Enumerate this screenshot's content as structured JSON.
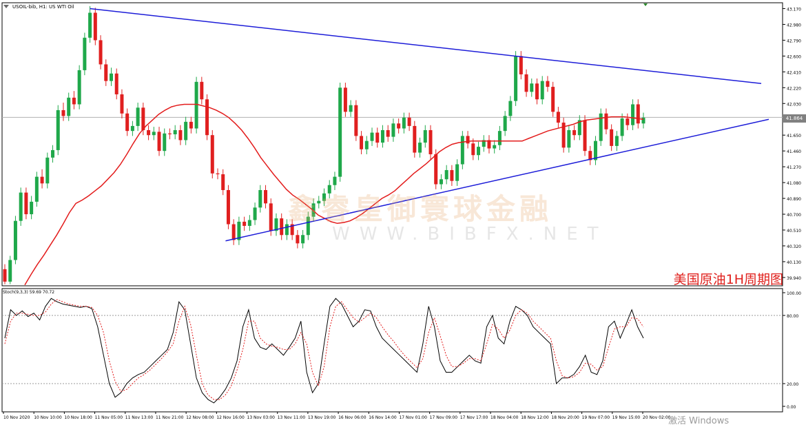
{
  "chart_data": [
    {
      "type": "candlestick",
      "title": "USOIL-bib, H1: US WTI Oil",
      "current_price": "41.864",
      "ylim": [
        39.84,
        43.24
      ],
      "y_ticks": [
        "43.170",
        "42.980",
        "42.790",
        "42.600",
        "42.410",
        "42.220",
        "42.030",
        "41.840",
        "41.650",
        "41.460",
        "41.270",
        "41.080",
        "40.890",
        "40.700",
        "40.510",
        "40.320",
        "40.130",
        "39.940"
      ],
      "x_ticks": [
        "10 Nov 2020",
        "10 Nov 10:00",
        "10 Nov 18:00",
        "11 Nov 05:00",
        "11 Nov 13:00",
        "11 Nov 21:00",
        "12 Nov 08:00",
        "12 Nov 16:00",
        "13 Nov 03:00",
        "13 Nov 11:00",
        "13 Nov 19:00",
        "16 Nov 06:00",
        "16 Nov 14:00",
        "17 Nov 01:00",
        "17 Nov 09:00",
        "17 Nov 17:00",
        "18 Nov 04:00",
        "18 Nov 12:00",
        "18 Nov 20:00",
        "19 Nov 07:00",
        "19 Nov 15:00",
        "20 Nov 02:00"
      ],
      "candles": [
        [
          40.04,
          39.89,
          40.1,
          39.86
        ],
        [
          39.89,
          40.15,
          40.2,
          39.86
        ],
        [
          40.15,
          40.62,
          40.68,
          40.1
        ],
        [
          40.62,
          40.96,
          41.02,
          40.56
        ],
        [
          40.96,
          40.7,
          41.02,
          40.64
        ],
        [
          40.7,
          40.85,
          40.92,
          40.64
        ],
        [
          40.85,
          41.15,
          41.21,
          40.79
        ],
        [
          41.15,
          41.07,
          41.24,
          41.01
        ],
        [
          41.07,
          41.38,
          41.44,
          41.01
        ],
        [
          41.38,
          41.47,
          41.53,
          41.32
        ],
        [
          41.47,
          41.95,
          42.01,
          41.41
        ],
        [
          41.95,
          41.88,
          42.04,
          41.82
        ],
        [
          41.88,
          42.1,
          42.16,
          41.82
        ],
        [
          42.1,
          42.02,
          42.18,
          41.96
        ],
        [
          42.02,
          42.43,
          42.49,
          41.96
        ],
        [
          42.43,
          42.82,
          42.88,
          42.37
        ],
        [
          42.82,
          43.12,
          43.2,
          42.76
        ],
        [
          43.12,
          42.79,
          43.18,
          42.73
        ],
        [
          42.79,
          42.5,
          42.85,
          42.44
        ],
        [
          42.5,
          42.3,
          42.56,
          42.24
        ],
        [
          42.3,
          42.39,
          42.46,
          42.24
        ],
        [
          42.39,
          42.14,
          42.45,
          42.08
        ],
        [
          42.14,
          41.91,
          42.2,
          41.85
        ],
        [
          41.91,
          41.7,
          41.97,
          41.64
        ],
        [
          41.7,
          41.76,
          41.82,
          41.64
        ],
        [
          41.76,
          41.98,
          42.04,
          41.7
        ],
        [
          41.98,
          41.71,
          42.04,
          41.65
        ],
        [
          41.71,
          41.65,
          41.77,
          41.59
        ],
        [
          41.65,
          41.69,
          41.75,
          41.59
        ],
        [
          41.69,
          41.46,
          41.75,
          41.4
        ],
        [
          41.46,
          41.67,
          41.73,
          41.4
        ],
        [
          41.67,
          41.66,
          41.73,
          41.6
        ],
        [
          41.66,
          41.71,
          41.77,
          41.6
        ],
        [
          41.71,
          41.59,
          41.77,
          41.53
        ],
        [
          41.59,
          41.81,
          41.87,
          41.53
        ],
        [
          41.81,
          41.73,
          41.87,
          41.67
        ],
        [
          41.73,
          42.29,
          42.35,
          41.67
        ],
        [
          42.29,
          42.08,
          42.35,
          42.02
        ],
        [
          42.08,
          41.65,
          42.14,
          41.59
        ],
        [
          41.65,
          41.19,
          41.71,
          41.13
        ],
        [
          41.19,
          41.18,
          41.25,
          41.12
        ],
        [
          41.18,
          40.99,
          41.24,
          40.93
        ],
        [
          40.99,
          40.58,
          41.05,
          40.52
        ],
        [
          40.58,
          40.39,
          40.64,
          40.33
        ],
        [
          40.39,
          40.61,
          40.67,
          40.33
        ],
        [
          40.61,
          40.56,
          40.67,
          40.5
        ],
        [
          40.56,
          40.63,
          40.69,
          40.5
        ],
        [
          40.63,
          40.78,
          40.84,
          40.57
        ],
        [
          40.78,
          40.99,
          41.05,
          40.72
        ],
        [
          40.99,
          40.83,
          41.05,
          40.77
        ],
        [
          40.83,
          40.5,
          40.89,
          40.44
        ],
        [
          40.5,
          40.65,
          40.71,
          40.44
        ],
        [
          40.65,
          40.45,
          40.71,
          40.39
        ],
        [
          40.45,
          40.58,
          40.64,
          40.39
        ],
        [
          40.58,
          40.45,
          40.64,
          40.39
        ],
        [
          40.45,
          40.35,
          40.51,
          40.29
        ],
        [
          40.35,
          40.45,
          40.51,
          40.29
        ],
        [
          40.45,
          40.67,
          40.73,
          40.39
        ],
        [
          40.67,
          40.83,
          40.89,
          40.61
        ],
        [
          40.83,
          40.86,
          40.92,
          40.77
        ],
        [
          40.86,
          40.95,
          41.01,
          40.8
        ],
        [
          40.95,
          41.05,
          41.11,
          40.89
        ],
        [
          41.05,
          41.15,
          41.21,
          40.99
        ],
        [
          41.15,
          42.22,
          42.28,
          41.09
        ],
        [
          42.22,
          41.93,
          42.28,
          41.87
        ],
        [
          41.93,
          42.01,
          42.07,
          41.87
        ],
        [
          42.01,
          41.64,
          42.07,
          41.58
        ],
        [
          41.64,
          41.48,
          41.7,
          41.42
        ],
        [
          41.48,
          41.58,
          41.64,
          41.42
        ],
        [
          41.58,
          41.68,
          41.74,
          41.52
        ],
        [
          41.68,
          41.56,
          41.74,
          41.5
        ],
        [
          41.56,
          41.71,
          41.77,
          41.5
        ],
        [
          41.71,
          41.63,
          41.77,
          41.57
        ],
        [
          41.63,
          41.79,
          41.85,
          41.57
        ],
        [
          41.79,
          41.73,
          41.85,
          41.67
        ],
        [
          41.73,
          41.86,
          41.92,
          41.67
        ],
        [
          41.86,
          41.76,
          41.92,
          41.7
        ],
        [
          41.76,
          41.44,
          41.82,
          41.38
        ],
        [
          41.44,
          41.56,
          41.62,
          41.38
        ],
        [
          41.56,
          41.71,
          41.77,
          41.5
        ],
        [
          41.71,
          41.42,
          41.77,
          41.36
        ],
        [
          41.42,
          41.06,
          41.48,
          41.0
        ],
        [
          41.06,
          41.12,
          41.18,
          41.0
        ],
        [
          41.12,
          41.23,
          41.29,
          41.06
        ],
        [
          41.23,
          41.1,
          41.29,
          41.04
        ],
        [
          41.1,
          41.3,
          41.36,
          41.04
        ],
        [
          41.3,
          41.64,
          41.7,
          41.24
        ],
        [
          41.64,
          41.55,
          41.7,
          41.49
        ],
        [
          41.55,
          41.41,
          41.61,
          41.35
        ],
        [
          41.41,
          41.51,
          41.57,
          41.35
        ],
        [
          41.51,
          41.59,
          41.65,
          41.45
        ],
        [
          41.59,
          41.49,
          41.65,
          41.43
        ],
        [
          41.49,
          41.53,
          41.59,
          41.43
        ],
        [
          41.53,
          41.7,
          41.76,
          41.47
        ],
        [
          41.7,
          41.88,
          41.94,
          41.64
        ],
        [
          41.88,
          42.06,
          42.12,
          41.82
        ],
        [
          42.06,
          42.6,
          42.66,
          42.0
        ],
        [
          42.6,
          42.38,
          42.66,
          42.32
        ],
        [
          42.38,
          42.17,
          42.44,
          42.11
        ],
        [
          42.17,
          42.27,
          42.33,
          42.11
        ],
        [
          42.27,
          42.08,
          42.33,
          42.02
        ],
        [
          42.08,
          42.3,
          42.36,
          42.02
        ],
        [
          42.3,
          42.23,
          42.36,
          42.17
        ],
        [
          42.23,
          41.93,
          42.29,
          41.87
        ],
        [
          41.93,
          41.8,
          41.99,
          41.74
        ],
        [
          41.8,
          41.5,
          41.86,
          41.44
        ],
        [
          41.5,
          41.71,
          41.77,
          41.44
        ],
        [
          41.71,
          41.65,
          41.77,
          41.59
        ],
        [
          41.65,
          41.83,
          41.89,
          41.59
        ],
        [
          41.83,
          41.46,
          41.89,
          41.4
        ],
        [
          41.46,
          41.35,
          41.52,
          41.29
        ],
        [
          41.35,
          41.58,
          41.64,
          41.29
        ],
        [
          41.58,
          41.91,
          41.97,
          41.52
        ],
        [
          41.91,
          41.72,
          41.97,
          41.66
        ],
        [
          41.72,
          41.52,
          41.78,
          41.46
        ],
        [
          41.52,
          41.64,
          41.7,
          41.46
        ],
        [
          41.64,
          41.85,
          41.91,
          41.58
        ],
        [
          41.85,
          41.77,
          41.91,
          41.71
        ],
        [
          41.77,
          42.02,
          42.08,
          41.71
        ],
        [
          42.02,
          41.79,
          42.08,
          41.73
        ],
        [
          41.79,
          41.86,
          41.92,
          41.73
        ]
      ],
      "series": [
        {
          "name": "",
          "color": "#e31b1b",
          "values": [
            39.85,
            39.98,
            40.1,
            40.21,
            40.33,
            40.45,
            40.58,
            40.72,
            40.83,
            40.87,
            40.92,
            40.98,
            41.04,
            41.12,
            41.2,
            41.3,
            41.42,
            41.55,
            41.67,
            41.76,
            41.83,
            41.9,
            41.95,
            41.99,
            42.01,
            42.02,
            42.02,
            42.02,
            42.0,
            41.98,
            41.95,
            41.91,
            41.86,
            41.79,
            41.71,
            41.61,
            41.5,
            41.38,
            41.28,
            41.18,
            41.09,
            41.0,
            40.93,
            40.88,
            40.82,
            40.76,
            40.69,
            40.65,
            40.61,
            40.59,
            40.6,
            40.62,
            40.66,
            40.71,
            40.77,
            40.83,
            40.89,
            40.93,
            40.98,
            41.05,
            41.12,
            41.19,
            41.25,
            41.31,
            41.38,
            41.45,
            41.5,
            41.54,
            41.56,
            41.57,
            41.58,
            41.58,
            41.58,
            41.58,
            41.58,
            41.58,
            41.58,
            41.58,
            41.58,
            41.61,
            41.64,
            41.67,
            41.7,
            41.72,
            41.74,
            41.76,
            41.78,
            41.81,
            41.83,
            41.84,
            41.85,
            41.86,
            41.87,
            41.87,
            41.87,
            41.86,
            41.85,
            41.84
          ]
        }
      ],
      "trendlines_color": "#1c1cd8",
      "trendlines": [
        {
          "name": "upper",
          "x1": 16,
          "y1": 43.17,
          "x2": 110,
          "y2": 42.27
        },
        {
          "name": "lower",
          "x1": 42,
          "y1": 40.38,
          "x2": 110,
          "y2": 41.84
        }
      ],
      "annotation": "美国原油1H周期图",
      "watermark_cn": "鑫睿皇御寰球金融",
      "watermark_en": "WWW.BIBFX.NET"
    },
    {
      "type": "line",
      "title": "Stoch(9,3,3) 59.69 70.72",
      "ylim": [
        0,
        100
      ],
      "y_ticks": [
        "100.00",
        "80.00",
        "20.00",
        "0.00"
      ],
      "levels": [
        80,
        20
      ],
      "series": [
        {
          "name": "",
          "color": "#000000",
          "values": [
            60,
            85,
            80,
            84,
            79,
            82,
            76,
            88,
            95,
            92,
            90,
            89,
            88,
            87,
            88,
            86,
            70,
            45,
            20,
            8,
            12,
            20,
            25,
            28,
            30,
            35,
            40,
            45,
            50,
            65,
            92,
            85,
            55,
            25,
            12,
            6,
            3,
            8,
            15,
            25,
            40,
            70,
            85,
            60,
            52,
            50,
            55,
            50,
            45,
            52,
            60,
            75,
            30,
            12,
            20,
            55,
            88,
            95,
            90,
            80,
            70,
            75,
            85,
            84,
            70,
            60,
            55,
            50,
            45,
            40,
            35,
            30,
            55,
            88,
            70,
            40,
            30,
            30,
            35,
            40,
            45,
            40,
            38,
            70,
            80,
            60,
            55,
            75,
            88,
            85,
            80,
            70,
            65,
            60,
            55,
            20,
            25,
            25,
            28,
            35,
            45,
            30,
            28,
            40,
            70,
            75,
            60,
            72,
            85,
            70,
            60
          ]
        },
        {
          "name": "",
          "color": "#e31b1b",
          "values": [
            55,
            75,
            82,
            82,
            81,
            80,
            80,
            83,
            90,
            94,
            92,
            90,
            89,
            88,
            88,
            87,
            80,
            65,
            40,
            22,
            13,
            15,
            20,
            25,
            28,
            32,
            37,
            42,
            48,
            55,
            75,
            88,
            72,
            45,
            20,
            10,
            6,
            6,
            10,
            18,
            32,
            50,
            75,
            75,
            60,
            55,
            53,
            52,
            50,
            50,
            55,
            65,
            55,
            30,
            18,
            35,
            70,
            88,
            92,
            85,
            78,
            74,
            78,
            82,
            78,
            70,
            63,
            57,
            50,
            44,
            39,
            34,
            42,
            65,
            78,
            62,
            45,
            35,
            35,
            38,
            42,
            42,
            40,
            55,
            72,
            68,
            60,
            67,
            80,
            85,
            82,
            75,
            70,
            65,
            60,
            40,
            27,
            25,
            26,
            30,
            38,
            37,
            32,
            35,
            52,
            68,
            70,
            70,
            78,
            77,
            70
          ]
        }
      ]
    }
  ],
  "symbol_label": "USOIL-bib, H1: US WTI Oil",
  "indicator_label": "Stoch(9,3,3) 59.69 70.72",
  "os_watermark": "激活 Windows"
}
